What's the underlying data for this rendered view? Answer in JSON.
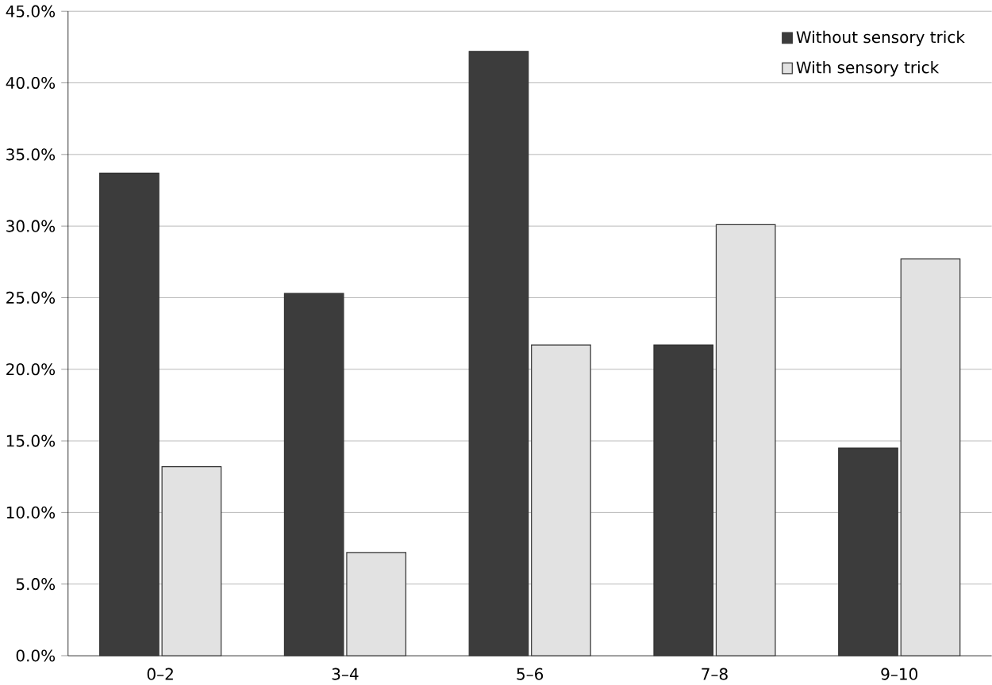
{
  "chart_data": {
    "type": "bar",
    "categories": [
      "0–2",
      "3–4",
      "5–6",
      "7–8",
      "9–10"
    ],
    "series": [
      {
        "name": "Without sensory trick",
        "color": "#3c3c3c",
        "values": [
          33.7,
          25.3,
          42.2,
          21.7,
          14.5
        ]
      },
      {
        "name": "With sensory trick",
        "color": "#e2e2e2",
        "values": [
          13.2,
          7.2,
          21.7,
          30.1,
          27.7
        ]
      }
    ],
    "ylim": [
      0,
      45
    ],
    "yticks": [
      {
        "value": 0,
        "label": "0.0%"
      },
      {
        "value": 5,
        "label": "5.0%"
      },
      {
        "value": 10,
        "label": "10.0%"
      },
      {
        "value": 15,
        "label": "15.0%"
      },
      {
        "value": 20,
        "label": "20.0%"
      },
      {
        "value": 25,
        "label": "25.0%"
      },
      {
        "value": 30,
        "label": "30.0%"
      },
      {
        "value": 35,
        "label": "35.0%"
      },
      {
        "value": 40,
        "label": "40.0%"
      },
      {
        "value": 45,
        "label": "45.0%"
      }
    ],
    "grid": "y",
    "legend": "top right"
  }
}
